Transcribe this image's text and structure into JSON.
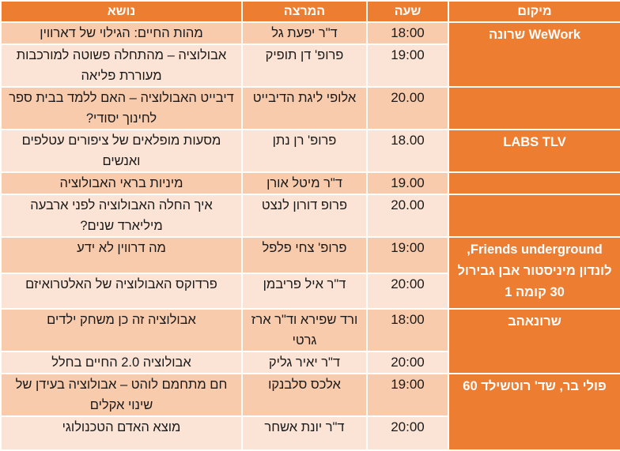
{
  "colors": {
    "header": "#ed7d31",
    "location": "#ed7d31",
    "row_dark": "#f8cbad",
    "row_light": "#fbe4d5",
    "header_text": "#ffffff"
  },
  "headers": {
    "location": "מיקום",
    "time": "שעה",
    "lecturer": "המרצה",
    "topic": "נושא"
  },
  "rows": [
    {
      "location": "WeWork שרונה",
      "span": 2,
      "time": "18:00",
      "lecturer": "ד\"ר יפעת גל",
      "topic": "מהות החיים: הגילוי של דארווין"
    },
    {
      "time": "19:00",
      "lecturer": "פרופ' דן תופיק",
      "topic": "אבולוציה – מהתחלה פשוטה למורכבות מעוררת פליאה"
    },
    {
      "location": "",
      "span": 1,
      "time": "20.00",
      "lecturer": "אלופי ליגת הדיבייט",
      "topic": "דיבייט האבולוציה – האם ללמד בבית ספר לחינוך יסודי?"
    },
    {
      "location": "LABS TLV",
      "span": 1,
      "time": "18.00",
      "lecturer": "פרופ' רן נתן",
      "topic": "מסעות מופלאים של ציפורים עטלפים ואנשים"
    },
    {
      "location": "",
      "span": 1,
      "time": "19.00",
      "lecturer": "ד\"ר מיטל אורן",
      "topic": "מיניות בראי האבולוציה"
    },
    {
      "location": "",
      "span": 1,
      "time": "20.00",
      "lecturer": "פרופ דורון לנצט",
      "topic": "איך החלה האבולוציה לפני ארבעה מיליארד שנים?"
    },
    {
      "location": "Friends underground, לונדון מיניסטור אבן גבירול 30 קומה 1",
      "span": 2,
      "time": "19:00",
      "lecturer": "פרופ' צחי פלפל",
      "topic": "מה דרווין לא ידע"
    },
    {
      "time": "20:00",
      "lecturer": "ד\"ר איל פריבמן",
      "topic": "פרדוקס האבולוציה של האלטרואיזם"
    },
    {
      "location": "שרונאהב",
      "span": 2,
      "time": "18:00",
      "lecturer": "ורד שפירא וד\"ר ארז גרטי",
      "topic": "אבולוציה זה כן משחק ילדים"
    },
    {
      "time": "20:00",
      "lecturer": "ד\"ר יאיר גליק",
      "topic": "אבולוציה 2.0 החיים בחלל"
    },
    {
      "location": "פולי בר, שד' רוטשילד 60",
      "span": 2,
      "time": "19:00",
      "lecturer": "אלכס סלבנקו",
      "topic": "חם מתחמם לוהט – אבולוציה בעידן של שינוי אקלים"
    },
    {
      "time": "20:00",
      "lecturer": "ד\"ר יונת אשחר",
      "topic": "מוצא האדם הטכנולוגי"
    }
  ]
}
